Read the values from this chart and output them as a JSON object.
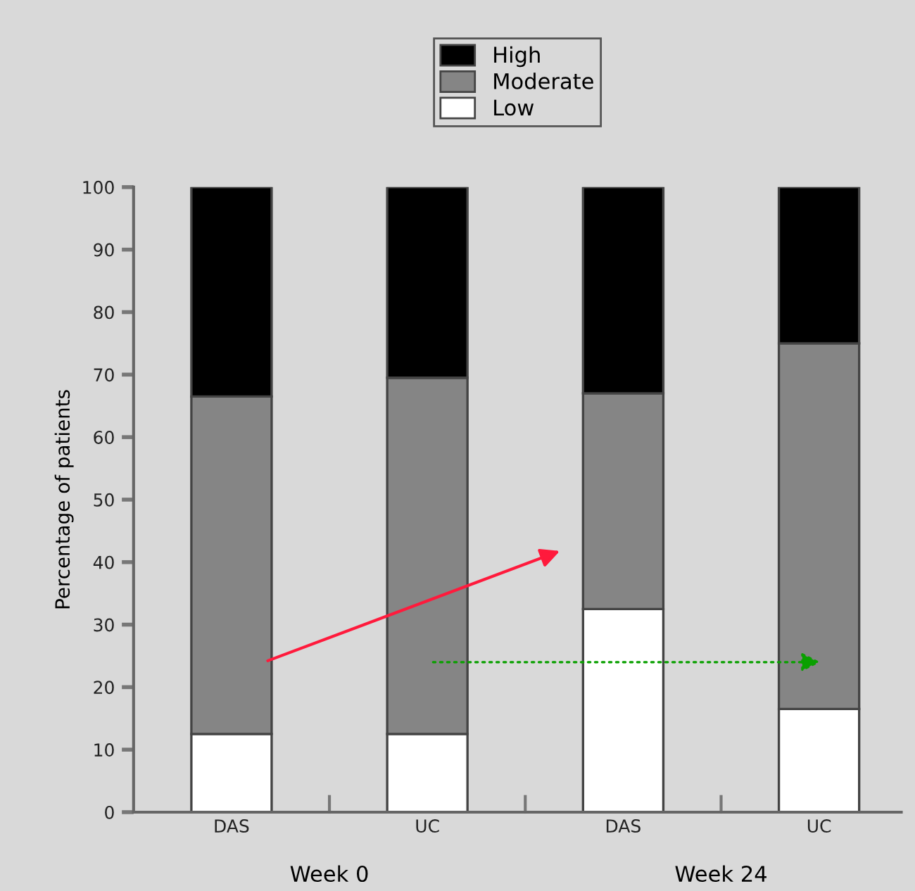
{
  "chart_data": {
    "type": "bar",
    "stacked": true,
    "ylabel": "Percentage of patients",
    "categories": [
      "DAS",
      "UC",
      "DAS",
      "UC"
    ],
    "series": [
      {
        "name": "Low",
        "color": "#ffffff",
        "values": [
          12.5,
          12.5,
          32.5,
          16.5
        ]
      },
      {
        "name": "Moderate",
        "color": "#858585",
        "values": [
          54,
          57,
          34.5,
          58.5
        ]
      },
      {
        "name": "High",
        "color": "#000000",
        "values": [
          33.5,
          30.5,
          33,
          25
        ]
      }
    ],
    "annotations": [
      "Week 0",
      "Week 24"
    ],
    "ylim": [
      0,
      100
    ],
    "yticks": [
      0,
      10,
      20,
      30,
      40,
      50,
      60,
      70,
      80,
      90,
      100
    ],
    "grid": false,
    "legend": "top"
  }
}
